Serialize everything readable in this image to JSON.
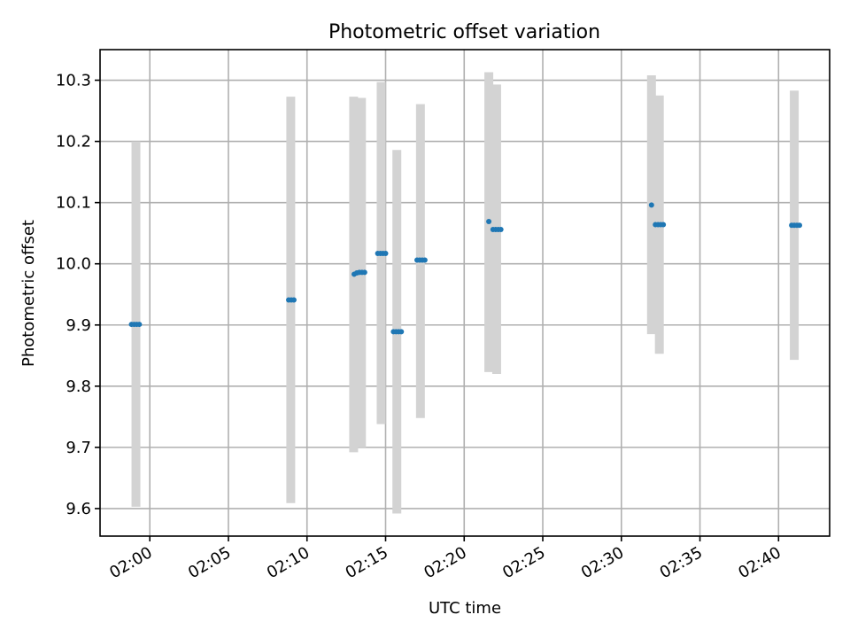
{
  "chart_data": {
    "type": "scatter",
    "title": "Photometric offset variation",
    "xlabel": "UTC time",
    "ylabel": "Photometric offset",
    "xlim": [
      "01:56:50",
      "02:43:15"
    ],
    "ylim": [
      9.555,
      10.35
    ],
    "grid": true,
    "x_ticks": [
      "02:00",
      "02:05",
      "02:10",
      "02:15",
      "02:20",
      "02:25",
      "02:30",
      "02:35",
      "02:40"
    ],
    "y_ticks": [
      "9.6",
      "9.7",
      "9.8",
      "9.9",
      "10.0",
      "10.1",
      "10.2",
      "10.3"
    ],
    "colors": {
      "points": "#1f77b4",
      "errorbars": "#d3d3d3",
      "grid": "#b0b0b0"
    },
    "error_bars": [
      {
        "x": "01:59:07",
        "low": 9.603,
        "high": 10.2
      },
      {
        "x": "02:08:58",
        "low": 9.609,
        "high": 10.273
      },
      {
        "x": "02:12:58",
        "low": 9.692,
        "high": 10.273
      },
      {
        "x": "02:13:28",
        "low": 9.7,
        "high": 10.271
      },
      {
        "x": "02:14:43",
        "low": 9.738,
        "high": 10.297
      },
      {
        "x": "02:15:43",
        "low": 9.592,
        "high": 10.186
      },
      {
        "x": "02:17:13",
        "low": 9.748,
        "high": 10.261
      },
      {
        "x": "02:21:34",
        "low": 9.823,
        "high": 10.313
      },
      {
        "x": "02:22:04",
        "low": 9.82,
        "high": 10.293
      },
      {
        "x": "02:31:55",
        "low": 9.885,
        "high": 10.308
      },
      {
        "x": "02:32:25",
        "low": 9.853,
        "high": 10.275
      },
      {
        "x": "02:41:00",
        "low": 9.843,
        "high": 10.283
      }
    ],
    "points": [
      {
        "x": "01:58:50",
        "y": 9.901
      },
      {
        "x": "01:59:00",
        "y": 9.901
      },
      {
        "x": "01:59:10",
        "y": 9.901
      },
      {
        "x": "01:59:20",
        "y": 9.901
      },
      {
        "x": "02:08:50",
        "y": 9.941
      },
      {
        "x": "02:09:00",
        "y": 9.941
      },
      {
        "x": "02:09:10",
        "y": 9.941
      },
      {
        "x": "02:13:00",
        "y": 9.983
      },
      {
        "x": "02:13:10",
        "y": 9.985
      },
      {
        "x": "02:13:20",
        "y": 9.986
      },
      {
        "x": "02:13:30",
        "y": 9.986
      },
      {
        "x": "02:13:40",
        "y": 9.986
      },
      {
        "x": "02:14:30",
        "y": 10.017
      },
      {
        "x": "02:14:40",
        "y": 10.017
      },
      {
        "x": "02:14:50",
        "y": 10.017
      },
      {
        "x": "02:15:00",
        "y": 10.017
      },
      {
        "x": "02:15:30",
        "y": 9.889
      },
      {
        "x": "02:15:40",
        "y": 9.889
      },
      {
        "x": "02:15:50",
        "y": 9.889
      },
      {
        "x": "02:16:00",
        "y": 9.889
      },
      {
        "x": "02:17:00",
        "y": 10.006
      },
      {
        "x": "02:17:10",
        "y": 10.006
      },
      {
        "x": "02:17:20",
        "y": 10.006
      },
      {
        "x": "02:17:30",
        "y": 10.006
      },
      {
        "x": "02:21:34",
        "y": 10.069
      },
      {
        "x": "02:21:50",
        "y": 10.056
      },
      {
        "x": "02:22:00",
        "y": 10.056
      },
      {
        "x": "02:22:10",
        "y": 10.056
      },
      {
        "x": "02:22:20",
        "y": 10.056
      },
      {
        "x": "02:31:55",
        "y": 10.096
      },
      {
        "x": "02:32:10",
        "y": 10.064
      },
      {
        "x": "02:32:20",
        "y": 10.064
      },
      {
        "x": "02:32:30",
        "y": 10.064
      },
      {
        "x": "02:32:40",
        "y": 10.064
      },
      {
        "x": "02:40:50",
        "y": 10.063
      },
      {
        "x": "02:41:00",
        "y": 10.063
      },
      {
        "x": "02:41:10",
        "y": 10.063
      },
      {
        "x": "02:41:20",
        "y": 10.063
      }
    ]
  }
}
